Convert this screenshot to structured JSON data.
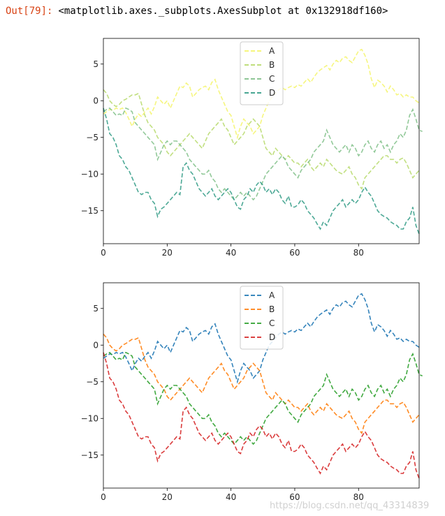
{
  "cell": {
    "prompt": "Out[79]:",
    "output_text": "<matplotlib.axes._subplots.AxesSubplot at 0x132918df160>"
  },
  "watermark": "https://blog.csdn.net/qq_43314839",
  "chart_data": [
    {
      "type": "line",
      "line_style": "dashed",
      "title": "",
      "xlabel": "",
      "ylabel": "",
      "xlim": [
        0,
        99
      ],
      "ylim": [
        -19.5,
        8.5
      ],
      "xticks": [
        0,
        20,
        40,
        60,
        80
      ],
      "yticks": [
        5,
        0,
        -5,
        -10,
        -15
      ],
      "legend": "top-center",
      "grid": false,
      "x_start": 0,
      "x_step": 1,
      "series": [
        {
          "name": "A",
          "color": "#f5f56a",
          "values": [
            -1.8,
            -1.5,
            -1.2,
            -1.3,
            -1.0,
            -1.2,
            -1.0,
            -1.6,
            -2.5,
            -3.5,
            -2.5,
            -1.8,
            -2.2,
            -1.5,
            -1.0,
            -1.8,
            -0.8,
            0.5,
            0.0,
            -0.5,
            0.0,
            -1.0,
            0.0,
            1.0,
            2.0,
            1.8,
            2.4,
            2.0,
            0.5,
            1.0,
            1.5,
            1.8,
            2.0,
            1.5,
            2.5,
            2.9,
            1.5,
            0.5,
            -0.5,
            -1.5,
            -2.0,
            -3.5,
            -5.0,
            -3.5,
            -2.5,
            -3.0,
            -3.5,
            -4.5,
            -4.0,
            -3.5,
            -2.0,
            -1.0,
            0.0,
            0.5,
            1.0,
            1.5,
            1.8,
            1.5,
            1.8,
            2.0,
            1.8,
            2.2,
            2.0,
            2.5,
            3.0,
            2.5,
            3.2,
            3.8,
            4.2,
            4.5,
            4.8,
            4.2,
            5.0,
            5.5,
            5.2,
            5.8,
            6.0,
            5.5,
            5.2,
            6.0,
            6.8,
            7.0,
            6.2,
            5.0,
            3.0,
            1.8,
            2.8,
            2.5,
            2.0,
            1.2,
            2.0,
            1.5,
            0.8,
            1.0,
            0.5,
            0.8,
            0.5,
            0.5,
            0.0,
            -0.3
          ]
        },
        {
          "name": "B",
          "color": "#b6d96a",
          "values": [
            1.5,
            1.0,
            0.0,
            -0.5,
            -0.8,
            -0.5,
            0.0,
            0.2,
            0.5,
            0.8,
            0.8,
            1.0,
            -0.5,
            -2.0,
            -3.0,
            -3.5,
            -4.0,
            -5.0,
            -5.5,
            -6.0,
            -7.0,
            -7.5,
            -7.0,
            -6.5,
            -6.0,
            -5.5,
            -5.0,
            -4.5,
            -5.0,
            -5.5,
            -6.0,
            -6.5,
            -5.5,
            -4.5,
            -4.0,
            -3.5,
            -3.0,
            -2.5,
            -3.5,
            -4.0,
            -5.0,
            -6.0,
            -5.5,
            -5.0,
            -4.5,
            -3.5,
            -3.0,
            -2.5,
            -3.0,
            -3.5,
            -5.0,
            -6.5,
            -7.0,
            -7.5,
            -6.5,
            -7.0,
            -7.5,
            -8.0,
            -7.5,
            -8.0,
            -8.5,
            -8.5,
            -9.0,
            -8.5,
            -8.0,
            -9.0,
            -9.5,
            -9.0,
            -8.5,
            -9.0,
            -8.0,
            -8.5,
            -9.0,
            -9.5,
            -9.8,
            -10.0,
            -9.5,
            -9.0,
            -10.0,
            -10.5,
            -11.5,
            -12.0,
            -10.5,
            -10.0,
            -9.5,
            -9.0,
            -8.5,
            -8.0,
            -7.5,
            -7.5,
            -8.0,
            -8.0,
            -8.5,
            -8.0,
            -7.8,
            -8.5,
            -9.5,
            -10.5,
            -10.0,
            -9.5
          ]
        },
        {
          "name": "C",
          "color": "#7fbf87",
          "values": [
            -1.5,
            -1.2,
            -1.0,
            -1.5,
            -2.0,
            -1.8,
            -2.0,
            -1.0,
            -1.2,
            -1.5,
            -3.0,
            -3.5,
            -4.0,
            -4.5,
            -5.0,
            -5.5,
            -6.0,
            -8.0,
            -7.0,
            -6.0,
            -5.5,
            -6.0,
            -5.5,
            -5.5,
            -6.0,
            -6.5,
            -7.0,
            -8.0,
            -8.5,
            -9.0,
            -9.5,
            -10.0,
            -10.0,
            -9.5,
            -10.5,
            -11.0,
            -12.0,
            -12.5,
            -12.0,
            -12.5,
            -13.0,
            -13.5,
            -13.0,
            -12.5,
            -13.0,
            -12.5,
            -13.0,
            -13.5,
            -13.0,
            -12.0,
            -11.0,
            -10.0,
            -9.5,
            -9.0,
            -8.5,
            -8.0,
            -7.5,
            -8.0,
            -9.0,
            -9.5,
            -10.0,
            -10.5,
            -9.5,
            -9.0,
            -8.5,
            -8.0,
            -7.0,
            -6.5,
            -6.0,
            -5.5,
            -4.0,
            -5.0,
            -6.0,
            -6.5,
            -7.0,
            -6.5,
            -6.0,
            -7.0,
            -6.0,
            -6.5,
            -7.5,
            -7.0,
            -6.0,
            -5.5,
            -6.5,
            -7.0,
            -6.0,
            -5.5,
            -6.5,
            -6.0,
            -7.0,
            -6.0,
            -5.5,
            -4.5,
            -5.0,
            -4.0,
            -2.0,
            -1.2,
            -2.5,
            -4.0,
            -4.2
          ]
        },
        {
          "name": "D",
          "color": "#2e9a84",
          "values": [
            -1.0,
            -2.5,
            -4.5,
            -5.0,
            -6.0,
            -7.5,
            -8.0,
            -9.0,
            -9.5,
            -10.5,
            -11.5,
            -12.5,
            -12.8,
            -12.5,
            -12.5,
            -13.5,
            -14.0,
            -15.8,
            -14.8,
            -14.5,
            -14.0,
            -13.5,
            -13.0,
            -12.5,
            -12.8,
            -9.0,
            -8.5,
            -9.5,
            -10.0,
            -11.0,
            -12.0,
            -12.5,
            -13.0,
            -12.5,
            -12.0,
            -13.0,
            -13.5,
            -13.0,
            -12.5,
            -12.0,
            -12.5,
            -13.5,
            -14.5,
            -14.8,
            -13.5,
            -13.0,
            -12.0,
            -12.5,
            -11.5,
            -11.0,
            -11.5,
            -12.5,
            -12.0,
            -12.8,
            -12.0,
            -12.5,
            -13.5,
            -14.0,
            -13.0,
            -14.5,
            -14.5,
            -14.2,
            -13.5,
            -14.0,
            -15.0,
            -15.5,
            -16.0,
            -16.8,
            -17.5,
            -16.5,
            -17.0,
            -16.0,
            -15.0,
            -14.5,
            -14.0,
            -13.5,
            -14.5,
            -14.0,
            -13.5,
            -14.0,
            -13.5,
            -12.5,
            -11.8,
            -12.5,
            -13.0,
            -14.0,
            -15.0,
            -15.5,
            -15.8,
            -16.0,
            -16.5,
            -16.8,
            -17.0,
            -17.5,
            -17.5,
            -16.5,
            -16.0,
            -14.5,
            -17.0,
            -18.2
          ]
        }
      ]
    },
    {
      "type": "line",
      "line_style": "dashed",
      "title": "",
      "xlabel": "",
      "ylabel": "",
      "xlim": [
        0,
        99
      ],
      "ylim": [
        -19.5,
        8.5
      ],
      "xticks": [
        0,
        20,
        40,
        60,
        80
      ],
      "yticks": [
        5,
        0,
        -5,
        -10,
        -15
      ],
      "legend": "top-center",
      "grid": false,
      "x_start": 0,
      "x_step": 1,
      "series": [
        {
          "name": "A",
          "color": "#1f77b4",
          "values": [
            -1.8,
            -1.5,
            -1.2,
            -1.3,
            -1.0,
            -1.2,
            -1.0,
            -1.6,
            -2.5,
            -3.5,
            -2.5,
            -1.8,
            -2.2,
            -1.5,
            -1.0,
            -1.8,
            -0.8,
            0.5,
            0.0,
            -0.5,
            0.0,
            -1.0,
            0.0,
            1.0,
            2.0,
            1.8,
            2.4,
            2.0,
            0.5,
            1.0,
            1.5,
            1.8,
            2.0,
            1.5,
            2.5,
            2.9,
            1.5,
            0.5,
            -0.5,
            -1.5,
            -2.0,
            -3.5,
            -5.0,
            -3.5,
            -2.5,
            -3.0,
            -3.5,
            -4.5,
            -4.0,
            -3.5,
            -2.0,
            -1.0,
            0.0,
            0.5,
            1.0,
            1.5,
            1.8,
            1.5,
            1.8,
            2.0,
            1.8,
            2.2,
            2.0,
            2.5,
            3.0,
            2.5,
            3.2,
            3.8,
            4.2,
            4.5,
            4.8,
            4.2,
            5.0,
            5.5,
            5.2,
            5.8,
            6.0,
            5.5,
            5.2,
            6.0,
            6.8,
            7.0,
            6.2,
            5.0,
            3.0,
            1.8,
            2.8,
            2.5,
            2.0,
            1.2,
            2.0,
            1.5,
            0.8,
            1.0,
            0.5,
            0.8,
            0.5,
            0.5,
            0.0,
            -0.3
          ]
        },
        {
          "name": "B",
          "color": "#ff7f0e",
          "values": [
            1.5,
            1.0,
            0.0,
            -0.5,
            -0.8,
            -0.5,
            0.0,
            0.2,
            0.5,
            0.8,
            0.8,
            1.0,
            -0.5,
            -2.0,
            -3.0,
            -3.5,
            -4.0,
            -5.0,
            -5.5,
            -6.0,
            -7.0,
            -7.5,
            -7.0,
            -6.5,
            -6.0,
            -5.5,
            -5.0,
            -4.5,
            -5.0,
            -5.5,
            -6.0,
            -6.5,
            -5.5,
            -4.5,
            -4.0,
            -3.5,
            -3.0,
            -2.5,
            -3.5,
            -4.0,
            -5.0,
            -6.0,
            -5.5,
            -5.0,
            -4.5,
            -3.5,
            -3.0,
            -2.5,
            -3.0,
            -3.5,
            -5.0,
            -6.5,
            -7.0,
            -7.5,
            -6.5,
            -7.0,
            -7.5,
            -8.0,
            -7.5,
            -8.0,
            -8.5,
            -8.5,
            -9.0,
            -8.5,
            -8.0,
            -9.0,
            -9.5,
            -9.0,
            -8.5,
            -9.0,
            -8.0,
            -8.5,
            -9.0,
            -9.5,
            -9.8,
            -10.0,
            -9.5,
            -9.0,
            -10.0,
            -10.5,
            -11.5,
            -12.0,
            -10.5,
            -10.0,
            -9.5,
            -9.0,
            -8.5,
            -8.0,
            -7.5,
            -7.5,
            -8.0,
            -8.0,
            -8.5,
            -8.0,
            -7.8,
            -8.5,
            -9.5,
            -10.5,
            -10.0,
            -9.5
          ]
        },
        {
          "name": "C",
          "color": "#2ca02c",
          "values": [
            -1.5,
            -1.2,
            -1.0,
            -1.5,
            -2.0,
            -1.8,
            -2.0,
            -1.0,
            -1.2,
            -1.5,
            -3.0,
            -3.5,
            -4.0,
            -4.5,
            -5.0,
            -5.5,
            -6.0,
            -8.0,
            -7.0,
            -6.0,
            -5.5,
            -6.0,
            -5.5,
            -5.5,
            -6.0,
            -6.5,
            -7.0,
            -8.0,
            -8.5,
            -9.0,
            -9.5,
            -10.0,
            -10.0,
            -9.5,
            -10.5,
            -11.0,
            -12.0,
            -12.5,
            -12.0,
            -12.5,
            -13.0,
            -13.5,
            -13.0,
            -12.5,
            -13.0,
            -12.5,
            -13.0,
            -13.5,
            -13.0,
            -12.0,
            -11.0,
            -10.0,
            -9.5,
            -9.0,
            -8.5,
            -8.0,
            -7.5,
            -8.0,
            -9.0,
            -9.5,
            -10.0,
            -10.5,
            -9.5,
            -9.0,
            -8.5,
            -8.0,
            -7.0,
            -6.5,
            -6.0,
            -5.5,
            -4.0,
            -5.0,
            -6.0,
            -6.5,
            -7.0,
            -6.5,
            -6.0,
            -7.0,
            -6.0,
            -6.5,
            -7.5,
            -7.0,
            -6.0,
            -5.5,
            -6.5,
            -7.0,
            -6.0,
            -5.5,
            -6.5,
            -6.0,
            -7.0,
            -6.0,
            -5.5,
            -4.5,
            -5.0,
            -4.0,
            -2.0,
            -1.2,
            -2.5,
            -4.0,
            -4.2
          ]
        },
        {
          "name": "D",
          "color": "#d62728",
          "values": [
            -1.0,
            -2.5,
            -4.5,
            -5.0,
            -6.0,
            -7.5,
            -8.0,
            -9.0,
            -9.5,
            -10.5,
            -11.5,
            -12.5,
            -12.8,
            -12.5,
            -12.5,
            -13.5,
            -14.0,
            -15.8,
            -14.8,
            -14.5,
            -14.0,
            -13.5,
            -13.0,
            -12.5,
            -12.8,
            -9.0,
            -8.5,
            -9.5,
            -10.0,
            -11.0,
            -12.0,
            -12.5,
            -13.0,
            -12.5,
            -12.0,
            -13.0,
            -13.5,
            -13.0,
            -12.5,
            -12.0,
            -12.5,
            -13.5,
            -14.5,
            -14.8,
            -13.5,
            -13.0,
            -12.0,
            -12.5,
            -11.5,
            -11.0,
            -11.5,
            -12.5,
            -12.0,
            -12.8,
            -12.0,
            -12.5,
            -13.5,
            -14.0,
            -13.0,
            -14.5,
            -14.5,
            -14.2,
            -13.5,
            -14.0,
            -15.0,
            -15.5,
            -16.0,
            -16.8,
            -17.5,
            -16.5,
            -17.0,
            -16.0,
            -15.0,
            -14.5,
            -14.0,
            -13.5,
            -14.5,
            -14.0,
            -13.5,
            -14.0,
            -13.5,
            -12.5,
            -11.8,
            -12.5,
            -13.0,
            -14.0,
            -15.0,
            -15.5,
            -15.8,
            -16.0,
            -16.5,
            -16.8,
            -17.0,
            -17.5,
            -17.5,
            -16.5,
            -16.0,
            -14.5,
            -17.0,
            -18.2
          ]
        }
      ]
    }
  ]
}
